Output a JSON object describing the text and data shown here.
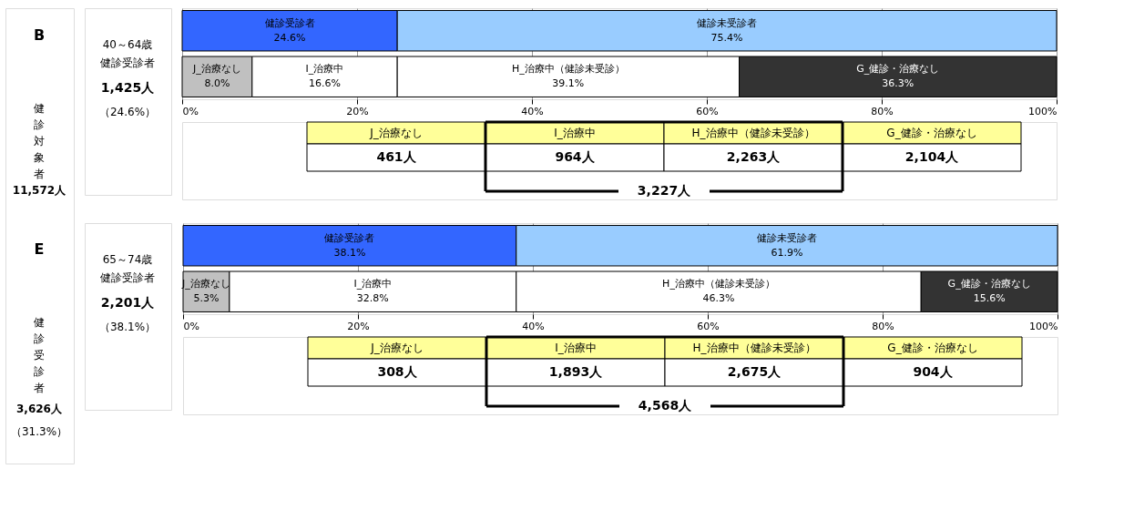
{
  "chart_data": [
    {
      "type": "other",
      "annotations": [
        "B",
        "健診対象者",
        "11,572人",
        "E",
        "健診受診者",
        "3,626人",
        "（31.3%）"
      ]
    },
    {
      "type": "bar",
      "orientation": "horizontal",
      "stacked": true,
      "categories": [
        null,
        null
      ],
      "tick_labels": "x",
      "xlim": [
        0,
        100
      ],
      "xticks": [
        {
          "value": 0,
          "label": "0%"
        },
        {
          "value": 20,
          "label": "20%"
        },
        {
          "value": 40,
          "label": "40%"
        },
        {
          "value": 60,
          "label": "60%"
        },
        {
          "value": 80,
          "label": "80%"
        },
        {
          "value": 100,
          "label": "100%"
        }
      ],
      "grid": "x",
      "legend": false,
      "series": [
        {
          "name": "健診受診者",
          "color": "#3366ff",
          "values": [
            24.6,
            null
          ],
          "value_labels": [
            "24.6%",
            null
          ]
        },
        {
          "name": "健診未受診者",
          "color": "#99ccff",
          "values": [
            75.4,
            null
          ],
          "value_labels": [
            "75.4%",
            null
          ]
        },
        {
          "name": "J_治療なし",
          "color": "#c0c0c0",
          "values": [
            null,
            8.0
          ],
          "value_labels": [
            null,
            "8.0%"
          ]
        },
        {
          "name": "I_治療中",
          "color": "#ffffff",
          "values": [
            null,
            16.6
          ],
          "value_labels": [
            null,
            "16.6%"
          ]
        },
        {
          "name": "H_治療中（健診未受診）",
          "color": "#ffffff",
          "values": [
            null,
            39.1
          ],
          "value_labels": [
            null,
            "39.1%"
          ]
        },
        {
          "name": "G_健診・治療なし",
          "color": "#333333",
          "values": [
            null,
            36.3
          ],
          "value_labels": [
            null,
            "36.3%"
          ]
        }
      ],
      "annotations": [
        "40～64歳",
        "健診受診者",
        "1,425人",
        "（24.6%）",
        "J_治療なし",
        "I_治療中",
        "H_治療中（健診未受診）",
        "G_健診・治療なし",
        "461人",
        "964人",
        "2,263人",
        "2,104人",
        "3,227人"
      ]
    },
    {
      "type": "bar",
      "orientation": "horizontal",
      "stacked": true,
      "categories": [
        null,
        null
      ],
      "tick_labels": "x",
      "xlim": [
        0,
        100
      ],
      "xticks": [
        {
          "value": 0,
          "label": "0%"
        },
        {
          "value": 20,
          "label": "20%"
        },
        {
          "value": 40,
          "label": "40%"
        },
        {
          "value": 60,
          "label": "60%"
        },
        {
          "value": 80,
          "label": "80%"
        },
        {
          "value": 100,
          "label": "100%"
        }
      ],
      "grid": "x",
      "legend": false,
      "series": [
        {
          "name": "健診受診者",
          "color": "#3366ff",
          "values": [
            38.1,
            null
          ],
          "value_labels": [
            "38.1%",
            null
          ]
        },
        {
          "name": "健診未受診者",
          "color": "#99ccff",
          "values": [
            61.9,
            null
          ],
          "value_labels": [
            "61.9%",
            null
          ]
        },
        {
          "name": "J_治療なし",
          "color": "#c0c0c0",
          "values": [
            null,
            5.3
          ],
          "value_labels": [
            null,
            "5.3%"
          ]
        },
        {
          "name": "I_治療中",
          "color": "#ffffff",
          "values": [
            null,
            32.8
          ],
          "value_labels": [
            null,
            "32.8%"
          ]
        },
        {
          "name": "H_治療中（健診未受診）",
          "color": "#ffffff",
          "values": [
            null,
            46.3
          ],
          "value_labels": [
            null,
            "46.3%"
          ]
        },
        {
          "name": "G_健診・治療なし",
          "color": "#333333",
          "values": [
            null,
            15.6
          ],
          "value_labels": [
            null,
            "15.6%"
          ]
        }
      ],
      "annotations": [
        "65～74歳",
        "健診受診者",
        "2,201人",
        "（38.1%）",
        "J_治療なし",
        "I_治療中",
        "H_治療中（健診未受診）",
        "G_健診・治療なし",
        "308人",
        "1,893人",
        "2,675人",
        "904人",
        "4,568人"
      ]
    }
  ]
}
